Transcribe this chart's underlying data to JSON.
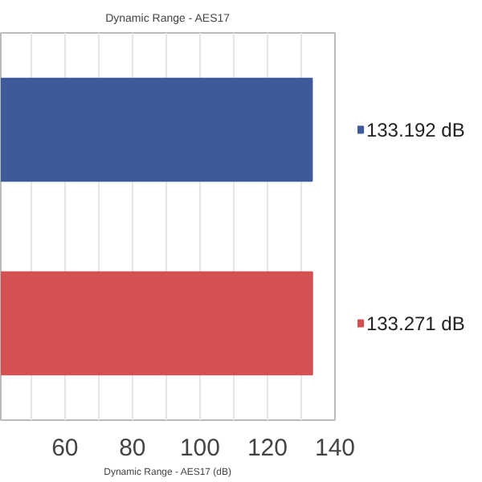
{
  "chart_data": {
    "type": "bar",
    "orientation": "horizontal",
    "title": "Dynamic Range - AES17",
    "xlabel": "Dynamic Range - AES17 (dB)",
    "categories": [
      null,
      null
    ],
    "values": [
      133.192,
      133.271
    ],
    "colors": [
      "#3f5a9a",
      "#d55050"
    ],
    "value_labels": [
      "133.192 dB",
      "133.271 dB"
    ],
    "xlim": [
      41,
      140
    ],
    "xticks": [
      {
        "value": 50,
        "label": null
      },
      60,
      {
        "value": 70,
        "label": null
      },
      80,
      {
        "value": 90,
        "label": null
      },
      100,
      {
        "value": 110,
        "label": null
      },
      120,
      {
        "value": 130,
        "label": null
      },
      140
    ],
    "grid": "x"
  }
}
